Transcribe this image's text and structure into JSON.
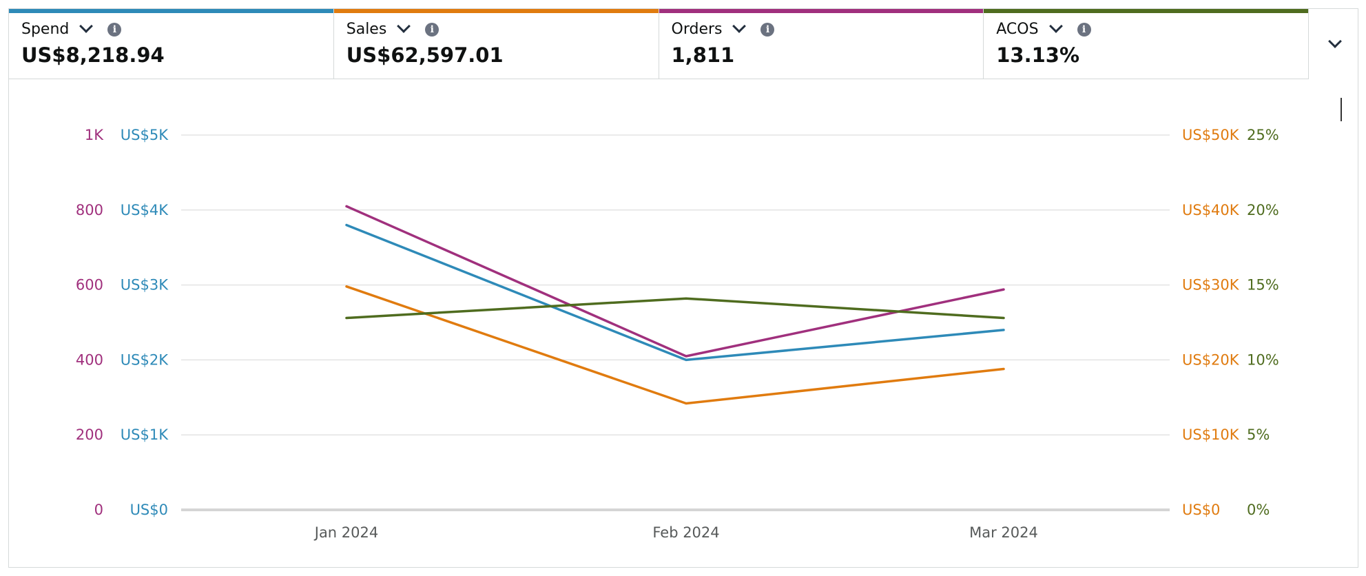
{
  "metrics": [
    {
      "label": "Spend",
      "value": "US$8,218.94",
      "color": "#2e8ab8"
    },
    {
      "label": "Sales",
      "value": "US$62,597.01",
      "color": "#e07b0f"
    },
    {
      "label": "Orders",
      "value": "1,811",
      "color": "#a0307d"
    },
    {
      "label": "ACOS",
      "value": "13.13%",
      "color": "#4f6c1f"
    }
  ],
  "chart_data": {
    "type": "line",
    "categories": [
      "Jan 2024",
      "Feb 2024",
      "Mar 2024"
    ],
    "grid": true,
    "axes": {
      "orders": {
        "side": "left-outer",
        "color": "#a0307d",
        "range": [
          0,
          1000
        ],
        "ticks": [
          "0",
          "200",
          "400",
          "600",
          "800",
          "1K"
        ]
      },
      "spend": {
        "side": "left-inner",
        "color": "#2e8ab8",
        "range": [
          0,
          5000
        ],
        "ticks": [
          "US$0",
          "US$1K",
          "US$2K",
          "US$3K",
          "US$4K",
          "US$5K"
        ]
      },
      "sales": {
        "side": "right-inner",
        "color": "#e07b0f",
        "range": [
          0,
          50000
        ],
        "ticks": [
          "US$0",
          "US$10K",
          "US$20K",
          "US$30K",
          "US$40K",
          "US$50K"
        ]
      },
      "acos": {
        "side": "right-outer",
        "color": "#4f6c1f",
        "range": [
          0,
          25
        ],
        "ticks": [
          "0%",
          "5%",
          "10%",
          "15%",
          "20%",
          "25%"
        ]
      }
    },
    "series": [
      {
        "name": "Spend",
        "axis": "spend",
        "color": "#2e8ab8",
        "values": [
          3800,
          2000,
          2400
        ]
      },
      {
        "name": "Sales",
        "axis": "sales",
        "color": "#e07b0f",
        "values": [
          29800,
          14200,
          18800
        ]
      },
      {
        "name": "Orders",
        "axis": "orders",
        "color": "#a0307d",
        "values": [
          810,
          410,
          588
        ]
      },
      {
        "name": "ACOS",
        "axis": "acos",
        "color": "#4f6c1f",
        "values": [
          12.8,
          14.1,
          12.8
        ]
      }
    ]
  }
}
